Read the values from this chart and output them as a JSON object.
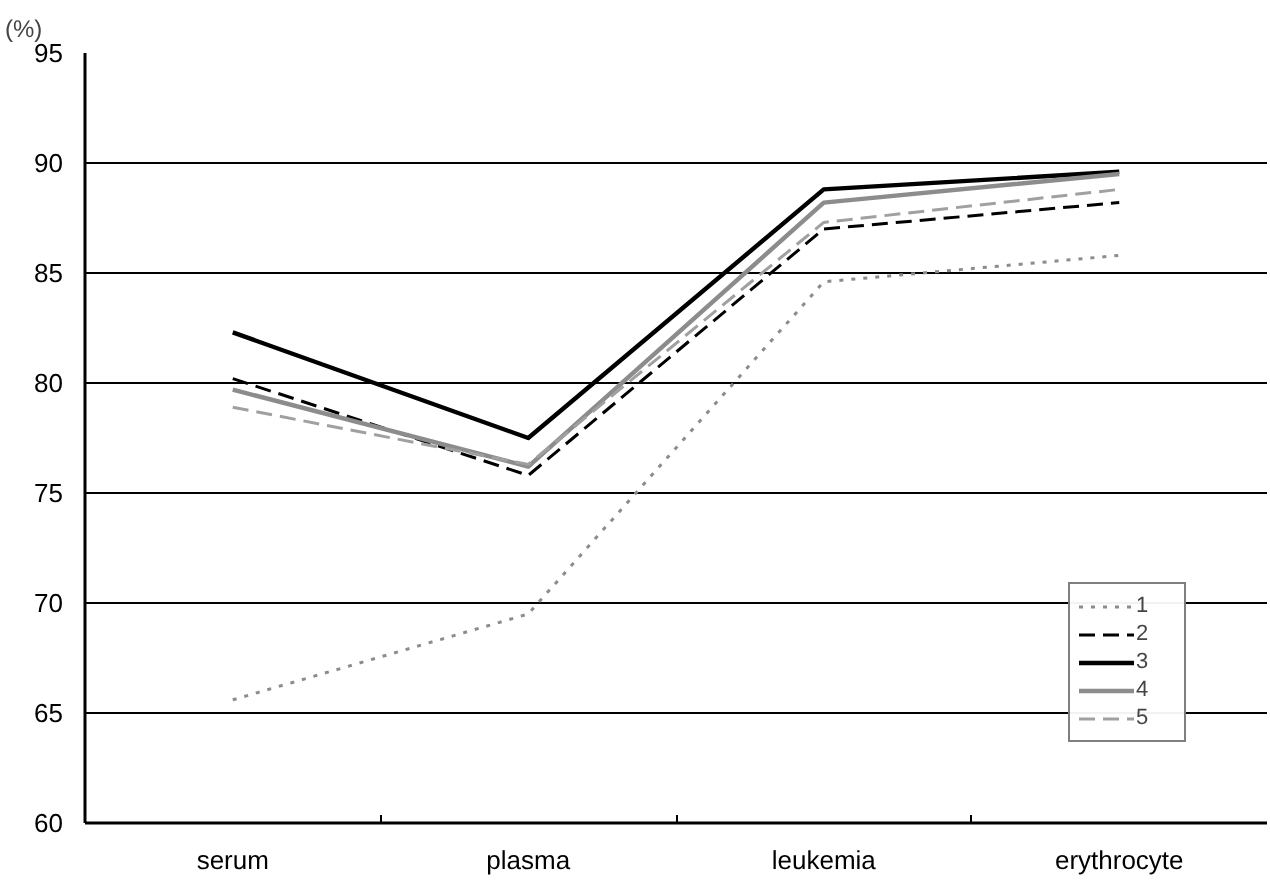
{
  "chart_data": {
    "type": "line",
    "ylabel": "(%)",
    "categories": [
      "serum",
      "plasma",
      "leukemia",
      "erythrocyte"
    ],
    "ylim": [
      60,
      95
    ],
    "yticks": [
      60,
      65,
      70,
      75,
      80,
      85,
      90,
      95
    ],
    "grid": "y",
    "legend": "bottom right",
    "marker": "none",
    "series": [
      {
        "name": "1",
        "color": "#8c8c8c",
        "line_style": "dotted",
        "values": [
          65.6,
          69.5,
          84.6,
          85.8
        ]
      },
      {
        "name": "2",
        "color": "#000000",
        "line_style": "dashed",
        "values": [
          80.2,
          75.8,
          87.0,
          88.2
        ]
      },
      {
        "name": "3",
        "color": "#000000",
        "line_style": "solid",
        "values": [
          82.3,
          77.5,
          88.8,
          89.6
        ]
      },
      {
        "name": "4",
        "color": "#8c8c8c",
        "line_style": "solid",
        "values": [
          79.7,
          76.2,
          88.2,
          89.5
        ]
      },
      {
        "name": "5",
        "color": "#a0a0a0",
        "line_style": "dashed",
        "values": [
          78.9,
          76.3,
          87.3,
          88.8
        ]
      }
    ]
  }
}
